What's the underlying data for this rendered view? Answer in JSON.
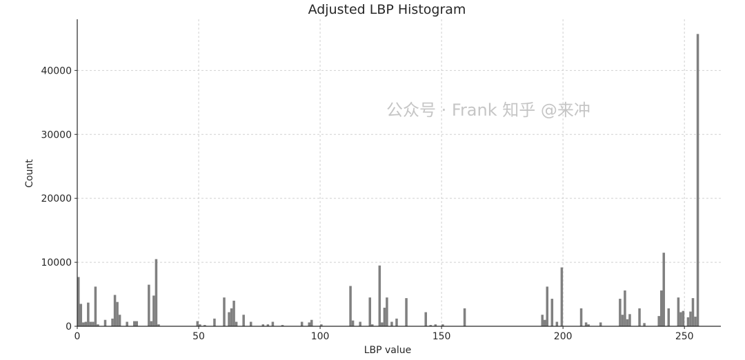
{
  "chart_data": {
    "type": "bar",
    "title": "Adjusted LBP Histogram",
    "xlabel": "LBP value",
    "ylabel": "Count",
    "xlim": [
      0,
      265
    ],
    "ylim": [
      0,
      48000
    ],
    "xticks": [
      0,
      50,
      100,
      150,
      200,
      250
    ],
    "yticks": [
      0,
      10000,
      20000,
      30000,
      40000
    ],
    "grid": true,
    "bar_color": "#808080",
    "bins": [
      0,
      1,
      2,
      3,
      4,
      5,
      6,
      7,
      8,
      11,
      14,
      15,
      16,
      17,
      20,
      23,
      24,
      29,
      30,
      31,
      32,
      33,
      49,
      50,
      52,
      56,
      60,
      62,
      63,
      64,
      65,
      68,
      71,
      76,
      78,
      80,
      84,
      92,
      95,
      96,
      100,
      112,
      113,
      116,
      120,
      121,
      124,
      125,
      126,
      127,
      129,
      131,
      135,
      143,
      145,
      147,
      150,
      159,
      191,
      192,
      193,
      195,
      197,
      199,
      207,
      209,
      210,
      215,
      223,
      224,
      225,
      226,
      227,
      231,
      233,
      239,
      240,
      241,
      243,
      247,
      248,
      249,
      251,
      252,
      253,
      254,
      255
    ],
    "values": [
      7700,
      3500,
      600,
      700,
      3700,
      700,
      700,
      6200,
      300,
      1000,
      1200,
      4900,
      3800,
      1800,
      700,
      800,
      800,
      6500,
      800,
      4800,
      10500,
      300,
      800,
      300,
      200,
      1200,
      4500,
      2200,
      2800,
      4000,
      700,
      1800,
      700,
      300,
      300,
      700,
      200,
      700,
      600,
      1000,
      300,
      6300,
      900,
      700,
      4500,
      300,
      9500,
      600,
      2900,
      4500,
      700,
      1200,
      4400,
      2200,
      200,
      300,
      300,
      2800,
      1800,
      1000,
      6200,
      4300,
      700,
      9200,
      2800,
      600,
      300,
      600,
      4300,
      1800,
      5600,
      1100,
      1900,
      2800,
      500,
      1600,
      5600,
      11500,
      2800,
      4500,
      2200,
      2400,
      1400,
      2300,
      4400,
      1500,
      45700
    ]
  },
  "watermark": "公众号 · Frank 知乎 @来冲"
}
